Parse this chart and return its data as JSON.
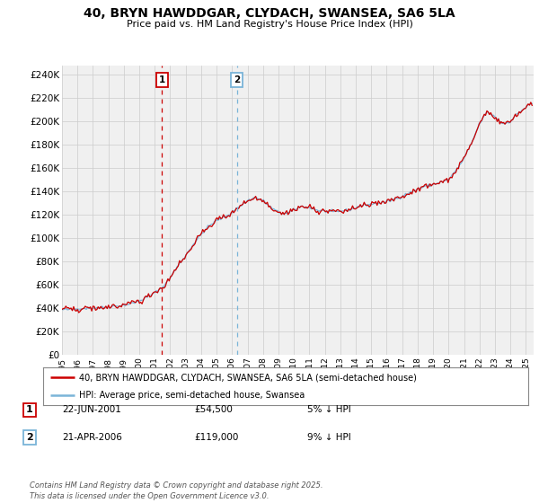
{
  "title_line1": "40, BRYN HAWDDGAR, CLYDACH, SWANSEA, SA6 5LA",
  "title_line2": "Price paid vs. HM Land Registry's House Price Index (HPI)",
  "legend_label1": "40, BRYN HAWDDGAR, CLYDACH, SWANSEA, SA6 5LA (semi-detached house)",
  "legend_label2": "HPI: Average price, semi-detached house, Swansea",
  "purchase1_label": "1",
  "purchase1_date": "22-JUN-2001",
  "purchase1_price": "£54,500",
  "purchase1_note": "5% ↓ HPI",
  "purchase2_label": "2",
  "purchase2_date": "21-APR-2006",
  "purchase2_price": "£119,000",
  "purchase2_note": "9% ↓ HPI",
  "footer": "Contains HM Land Registry data © Crown copyright and database right 2025.\nThis data is licensed under the Open Government Licence v3.0.",
  "ylabel_ticks": [
    "£0",
    "£20K",
    "£40K",
    "£60K",
    "£80K",
    "£100K",
    "£120K",
    "£140K",
    "£160K",
    "£180K",
    "£200K",
    "£220K",
    "£240K"
  ],
  "ytick_values": [
    0,
    20000,
    40000,
    60000,
    80000,
    100000,
    120000,
    140000,
    160000,
    180000,
    200000,
    220000,
    240000
  ],
  "xmin": 1995,
  "xmax": 2025.5,
  "ymin": 0,
  "ymax": 248000,
  "purchase1_x": 2001.47,
  "purchase2_x": 2006.3,
  "hpi_color": "#7ab4d8",
  "price_color": "#cc0000",
  "grid_color": "#cccccc",
  "background_color": "#ffffff",
  "plot_bg_color": "#f0f0f0"
}
